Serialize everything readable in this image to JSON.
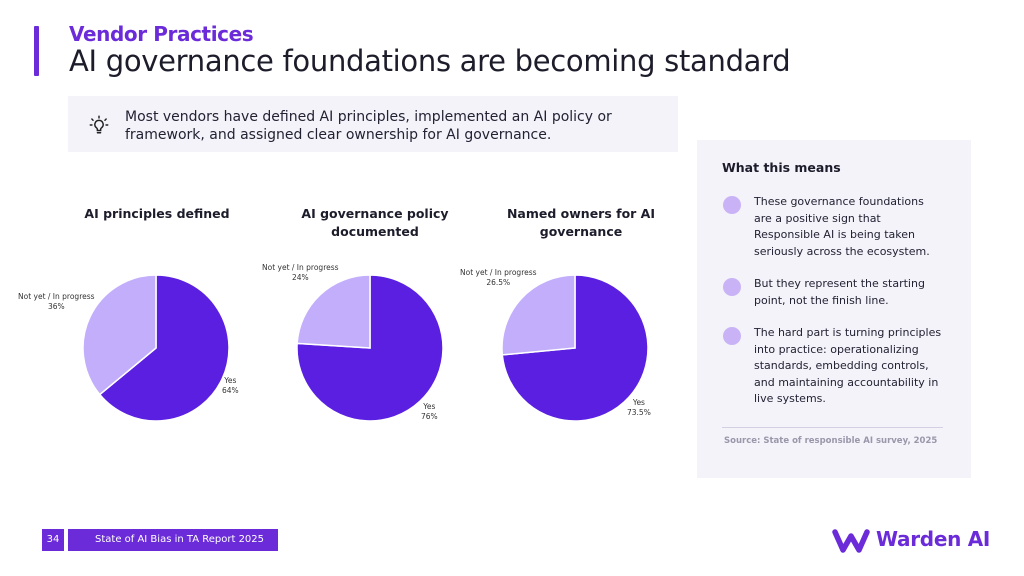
{
  "header": {
    "eyebrow": "Vendor Practices",
    "title": "AI governance foundations are becoming standard"
  },
  "callout": {
    "icon": "lightbulb-icon",
    "line1": "Most vendors have defined AI principles, implemented an AI policy or",
    "line2": "framework, and assigned clear ownership for AI governance."
  },
  "colors": {
    "yes": "#5a1fe0",
    "not_yet": "#c2aefb",
    "accent": "#6b2bd9",
    "panel_bg": "#f4f3fa"
  },
  "chart_data": [
    {
      "type": "pie",
      "title_line1": "AI principles defined",
      "title_line2": "",
      "slices": [
        {
          "label": "Yes",
          "value": 64,
          "display": "64%"
        },
        {
          "label": "Not yet / In progress",
          "value": 36,
          "display": "36%"
        }
      ]
    },
    {
      "type": "pie",
      "title_line1": "AI governance policy",
      "title_line2": "documented",
      "slices": [
        {
          "label": "Yes",
          "value": 76,
          "display": "76%"
        },
        {
          "label": "Not yet / In progress",
          "value": 24,
          "display": "24%"
        }
      ]
    },
    {
      "type": "pie",
      "title_line1": "Named owners for AI",
      "title_line2": "governance",
      "slices": [
        {
          "label": "Yes",
          "value": 73.5,
          "display": "73.5%"
        },
        {
          "label": "Not yet / In progress",
          "value": 26.5,
          "display": "26.5%"
        }
      ]
    }
  ],
  "panel": {
    "title": "What this means",
    "points": [
      {
        "lines": [
          "These governance foundations",
          "are a positive sign that",
          "Responsible AI is being taken",
          "seriously across the ecosystem."
        ]
      },
      {
        "lines": [
          "But they represent the starting",
          "point, not the finish line."
        ]
      },
      {
        "lines": [
          "The hard part is turning principles",
          "into practice: operationalizing",
          "standards, embedding controls,",
          "and maintaining accountability in",
          "live systems."
        ]
      }
    ],
    "source": "Source: State of responsible AI survey, 2025"
  },
  "footer": {
    "page_number": "34",
    "report_title": "State of AI Bias in TA Report 2025",
    "logo_text": "Warden AI"
  }
}
